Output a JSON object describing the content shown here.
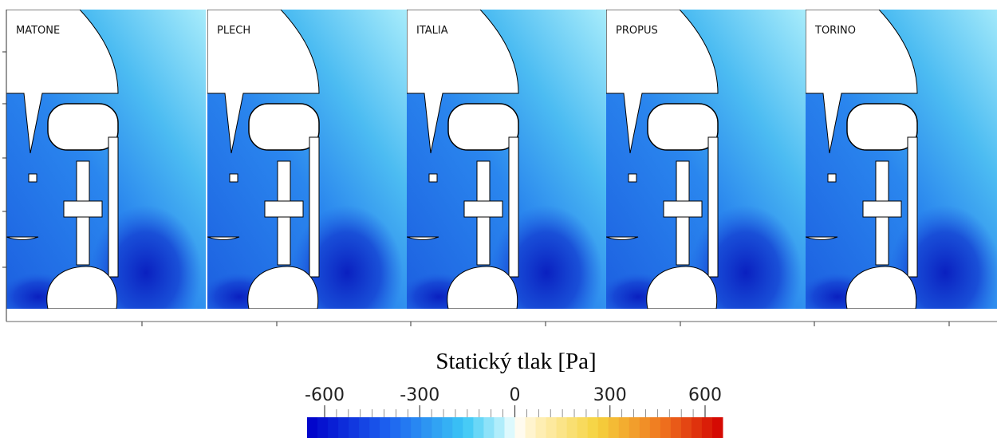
{
  "panels": [
    {
      "label": "MATONE"
    },
    {
      "label": "PLECH"
    },
    {
      "label": "ITALIA"
    },
    {
      "label": "PROPUS"
    },
    {
      "label": "TORINO"
    }
  ],
  "colorbar": {
    "title": "Statický tlak [Pa]",
    "lim": [
      -600,
      600
    ],
    "ticks": [
      -600,
      -300,
      0,
      300,
      600
    ]
  }
}
